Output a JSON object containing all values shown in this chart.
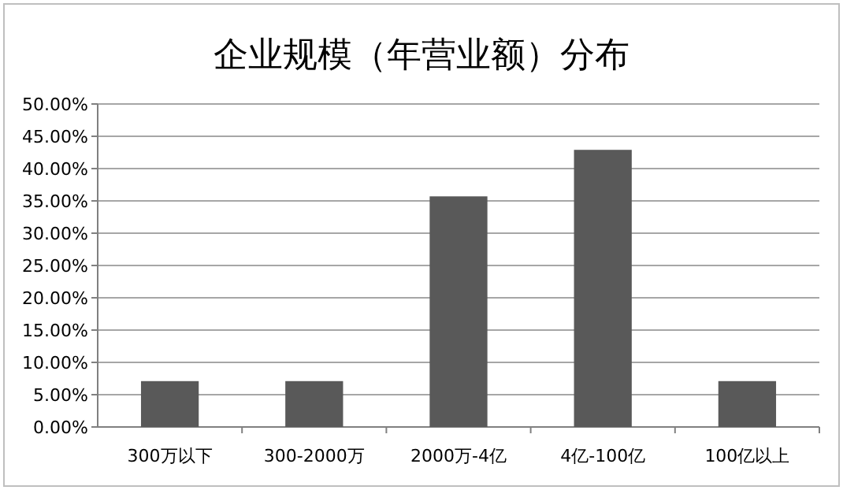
{
  "chart_data": {
    "type": "bar",
    "title": "企业规模（年营业额）分布",
    "categories": [
      "300万以下",
      "300-2000万",
      "2000万-4亿",
      "4亿-100亿",
      "100亿以上"
    ],
    "values": [
      7.1,
      7.1,
      35.7,
      42.9,
      7.1
    ],
    "color": "#595959",
    "ylim": [
      0,
      50
    ],
    "yticks": [
      {
        "value": 0,
        "label": "0.00%"
      },
      {
        "value": 5,
        "label": "5.00%"
      },
      {
        "value": 10,
        "label": "10.00%"
      },
      {
        "value": 15,
        "label": "15.00%"
      },
      {
        "value": 20,
        "label": "20.00%"
      },
      {
        "value": 25,
        "label": "25.00%"
      },
      {
        "value": 30,
        "label": "30.00%"
      },
      {
        "value": 35,
        "label": "35.00%"
      },
      {
        "value": 40,
        "label": "40.00%"
      },
      {
        "value": 45,
        "label": "45.00%"
      },
      {
        "value": 50,
        "label": "50.00%"
      }
    ],
    "grid": "y"
  }
}
